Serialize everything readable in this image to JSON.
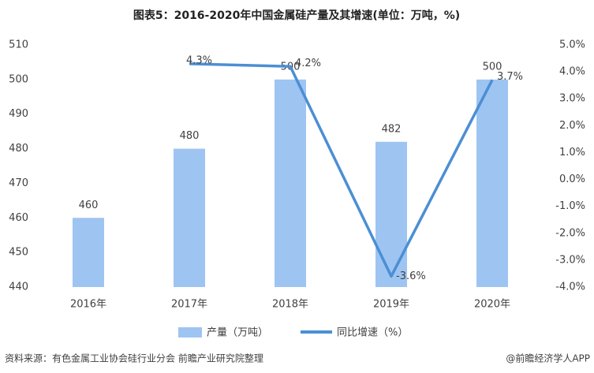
{
  "chart_data": {
    "type": "bar_line",
    "title": "图表5：2016-2020年中国金属硅产量及其增速(单位：万吨，%)",
    "categories": [
      "2016年",
      "2017年",
      "2018年",
      "2019年",
      "2020年"
    ],
    "series": [
      {
        "name": "产量（万吨）",
        "type": "bar",
        "color": "#9ec4f2",
        "values": [
          460,
          480,
          500,
          482,
          500
        ]
      },
      {
        "name": "同比增速（%）",
        "type": "line",
        "axis": "y2",
        "color": "#4b8fd4",
        "values": [
          null,
          4.3,
          4.2,
          -3.6,
          3.7
        ],
        "value_labels": [
          null,
          "4.3%",
          "4.2%",
          "-3.6%",
          "3.7%"
        ]
      }
    ],
    "ylim": [
      440,
      510
    ],
    "yticks": [
      440,
      450,
      460,
      470,
      480,
      490,
      500,
      510
    ],
    "y2lim": [
      -4.0,
      5.0
    ],
    "y2ticks": [
      {
        "value": -4.0,
        "label": "-4.0%"
      },
      {
        "value": -3.0,
        "label": "-3.0%"
      },
      {
        "value": -2.0,
        "label": "-2.0%"
      },
      {
        "value": -1.0,
        "label": "-1.0%"
      },
      {
        "value": 0.0,
        "label": "0.0%"
      },
      {
        "value": 1.0,
        "label": "1.0%"
      },
      {
        "value": 2.0,
        "label": "2.0%"
      },
      {
        "value": 3.0,
        "label": "3.0%"
      },
      {
        "value": 4.0,
        "label": "4.0%"
      },
      {
        "value": 5.0,
        "label": "5.0%"
      }
    ],
    "grid": false,
    "source": "资料来源：有色金属工业协会硅行业分会 前瞻产业研究院整理",
    "credit": "@前瞻经济学人APP"
  }
}
